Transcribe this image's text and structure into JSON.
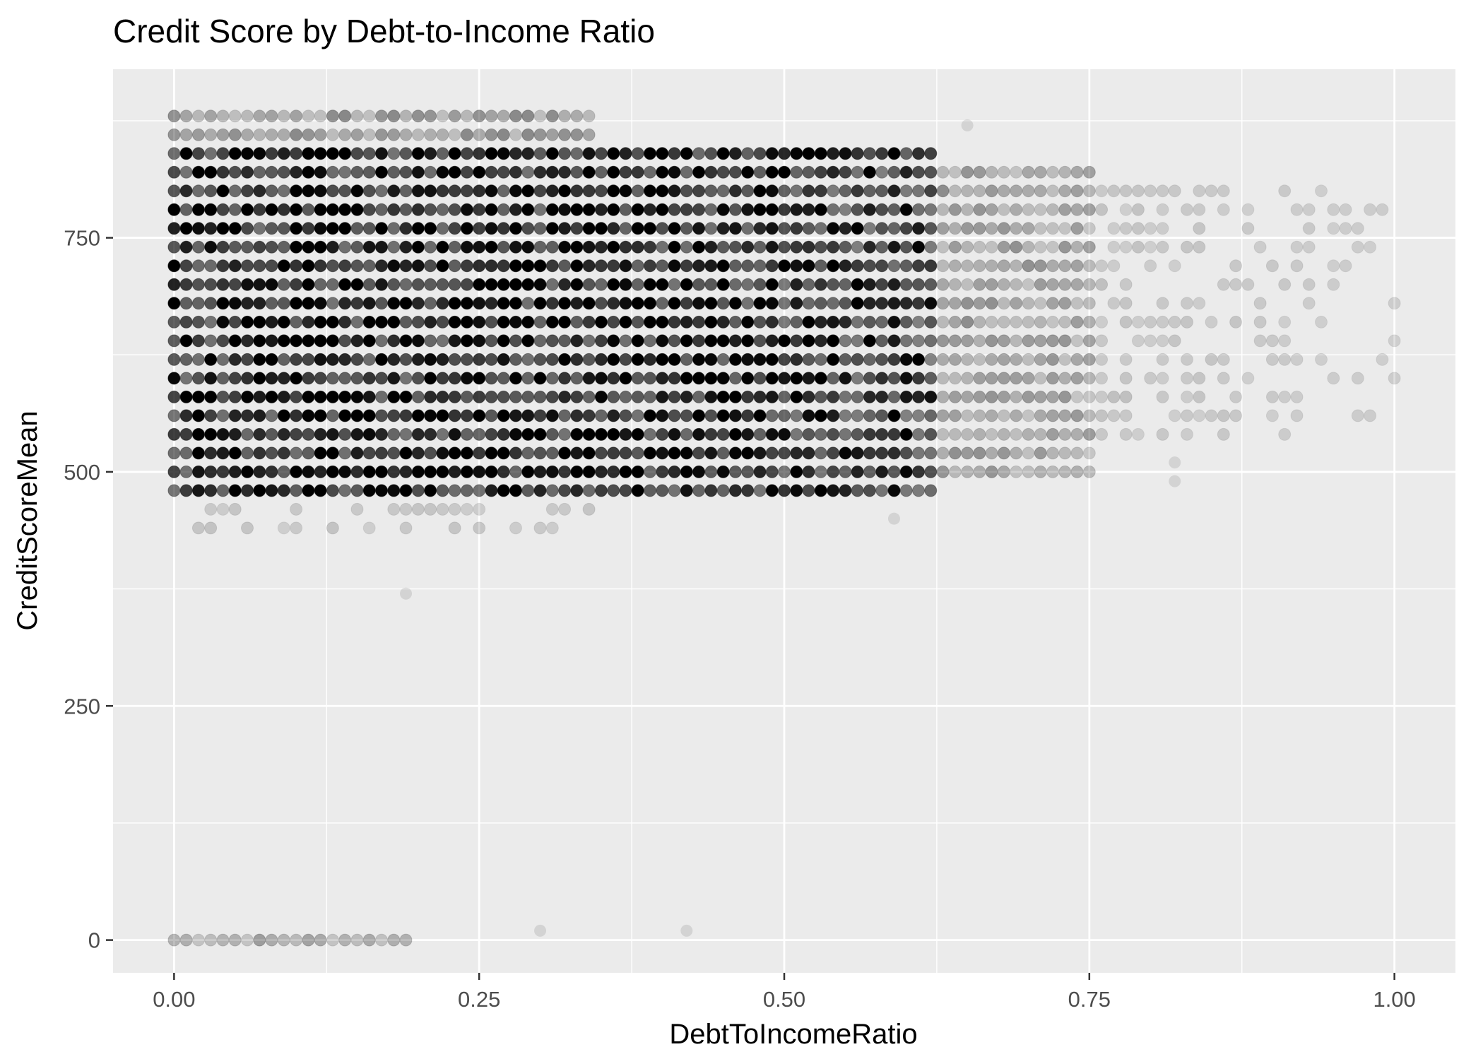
{
  "chart_data": {
    "type": "scatter",
    "title": "Credit Score by Debt-to-Income Ratio",
    "xlabel": "DebtToIncomeRatio",
    "ylabel": "CreditScoreMean",
    "xlim": [
      -0.05,
      1.05
    ],
    "ylim": [
      -35,
      930
    ],
    "x_ticks": [
      0.0,
      0.25,
      0.5,
      0.75,
      1.0
    ],
    "x_tick_labels": [
      "0.00",
      "0.25",
      "0.50",
      "0.75",
      "1.00"
    ],
    "y_ticks": [
      0,
      250,
      500,
      750
    ],
    "y_tick_labels": [
      "0",
      "250",
      "500",
      "750"
    ],
    "grid": true,
    "legend": "none",
    "point_color": "#000000",
    "panel_background": "#ebebeb",
    "grid_color": "#ffffff",
    "x_step": 0.01,
    "y_step": 20,
    "point_alpha": 0.1,
    "density_bands": [
      {
        "y_min": 470,
        "y_max": 850,
        "x_max": 0.62,
        "alpha": 0.85
      },
      {
        "y_min": 500,
        "y_max": 830,
        "x_max": 0.75,
        "alpha": 0.35
      },
      {
        "y_min": 470,
        "y_max": 890,
        "x_max": 0.35,
        "alpha": 0.3
      },
      {
        "y_min": 530,
        "y_max": 810,
        "x_max": 1.0,
        "alpha": 0.18
      },
      {
        "y_min": 430,
        "y_max": 470,
        "x_max": 0.35,
        "alpha": 0.12
      },
      {
        "y_min": 0,
        "y_max": 10,
        "x_max": 0.19,
        "alpha": 0.25
      }
    ],
    "outliers": [
      {
        "x": 0.19,
        "y": 370
      },
      {
        "x": 0.3,
        "y": 10
      },
      {
        "x": 0.42,
        "y": 10
      },
      {
        "x": 0.59,
        "y": 450
      },
      {
        "x": 0.65,
        "y": 870
      },
      {
        "x": 0.82,
        "y": 490
      },
      {
        "x": 0.82,
        "y": 510
      }
    ]
  }
}
